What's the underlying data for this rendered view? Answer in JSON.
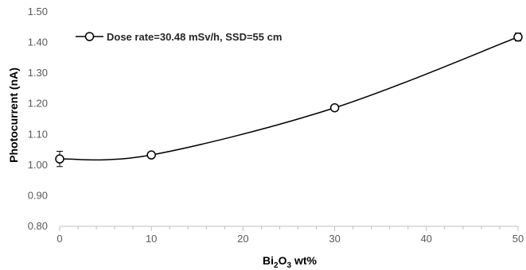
{
  "chart_data": {
    "type": "line",
    "x": [
      0,
      10,
      30,
      50
    ],
    "series": [
      {
        "name": "Dose rate=30.48 mSv/h, SSD=55 cm",
        "values": [
          1.02,
          1.033,
          1.187,
          1.418
        ],
        "error": [
          0.025,
          0.005,
          0.005,
          0.013
        ]
      }
    ],
    "xlabel": {
      "base": "Bi",
      "sub1": "2",
      "mid": "O",
      "sub2": "3",
      "rest": " wt%"
    },
    "ylabel": "Photocurrent (nA)",
    "xlim": [
      0,
      50
    ],
    "ylim": [
      0.8,
      1.5
    ],
    "xticks": [
      0,
      10,
      20,
      30,
      40,
      50
    ],
    "xtick_labels": [
      "0",
      "10",
      "20",
      "30",
      "40",
      "50"
    ],
    "yticks": [
      0.8,
      0.9,
      1.0,
      1.1,
      1.2,
      1.3,
      1.4,
      1.5
    ],
    "ytick_labels": [
      "0.80",
      "0.90",
      "1.00",
      "1.10",
      "1.20",
      "1.30",
      "1.40",
      "1.50"
    ],
    "x_minor_step": 2,
    "grid": false,
    "legend_position": "top-left",
    "colors": {
      "line": "#000000",
      "marker_fill": "#ffffff",
      "axis": "#bfbfbf"
    }
  }
}
